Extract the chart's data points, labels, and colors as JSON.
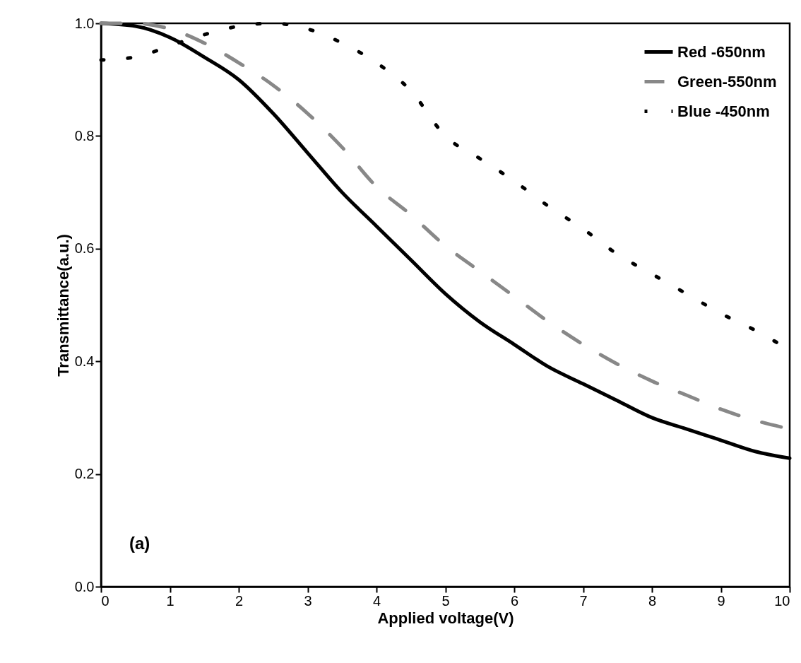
{
  "chart_data": {
    "type": "line",
    "xlabel": "Applied voltage(V)",
    "ylabel": "Transmittance(a.u.)",
    "xlim": [
      0,
      10
    ],
    "ylim": [
      0,
      1
    ],
    "xticks": [
      0,
      1,
      2,
      3,
      4,
      5,
      6,
      7,
      8,
      9,
      10
    ],
    "yticks": [
      {
        "value": 0,
        "label": "0.0"
      },
      0.2,
      0.4,
      0.6,
      0.8,
      {
        "value": 1,
        "label": "1.0"
      }
    ],
    "x": [
      0,
      0.5,
      1,
      1.5,
      2,
      2.5,
      3,
      3.5,
      4,
      4.5,
      5,
      5.5,
      6,
      6.5,
      7,
      7.5,
      8,
      8.5,
      9,
      9.5,
      10
    ],
    "series": [
      {
        "name": "Red -650nm",
        "color": "#000000",
        "line_style": "solid",
        "values": [
          1.0,
          0.995,
          0.975,
          0.94,
          0.9,
          0.84,
          0.77,
          0.7,
          0.64,
          0.58,
          0.52,
          0.47,
          0.43,
          0.39,
          0.36,
          0.33,
          0.3,
          0.28,
          0.26,
          0.24,
          0.228
        ]
      },
      {
        "name": "Green-550nm",
        "color": "#888888",
        "line_style": "dashed",
        "values": [
          1.0,
          1.0,
          0.99,
          0.965,
          0.93,
          0.89,
          0.84,
          0.78,
          0.71,
          0.66,
          0.605,
          0.56,
          0.515,
          0.47,
          0.43,
          0.395,
          0.365,
          0.34,
          0.315,
          0.295,
          0.28
        ]
      },
      {
        "name": "Blue -450nm",
        "color": "#000000",
        "line_style": "dotted",
        "values": [
          0.935,
          0.94,
          0.96,
          0.98,
          0.995,
          1.0,
          0.99,
          0.965,
          0.93,
          0.88,
          0.8,
          0.76,
          0.72,
          0.675,
          0.635,
          0.59,
          0.555,
          0.52,
          0.485,
          0.455,
          0.42
        ]
      }
    ],
    "legend": "top right",
    "grid": false,
    "annotations": [
      "(a)"
    ]
  }
}
